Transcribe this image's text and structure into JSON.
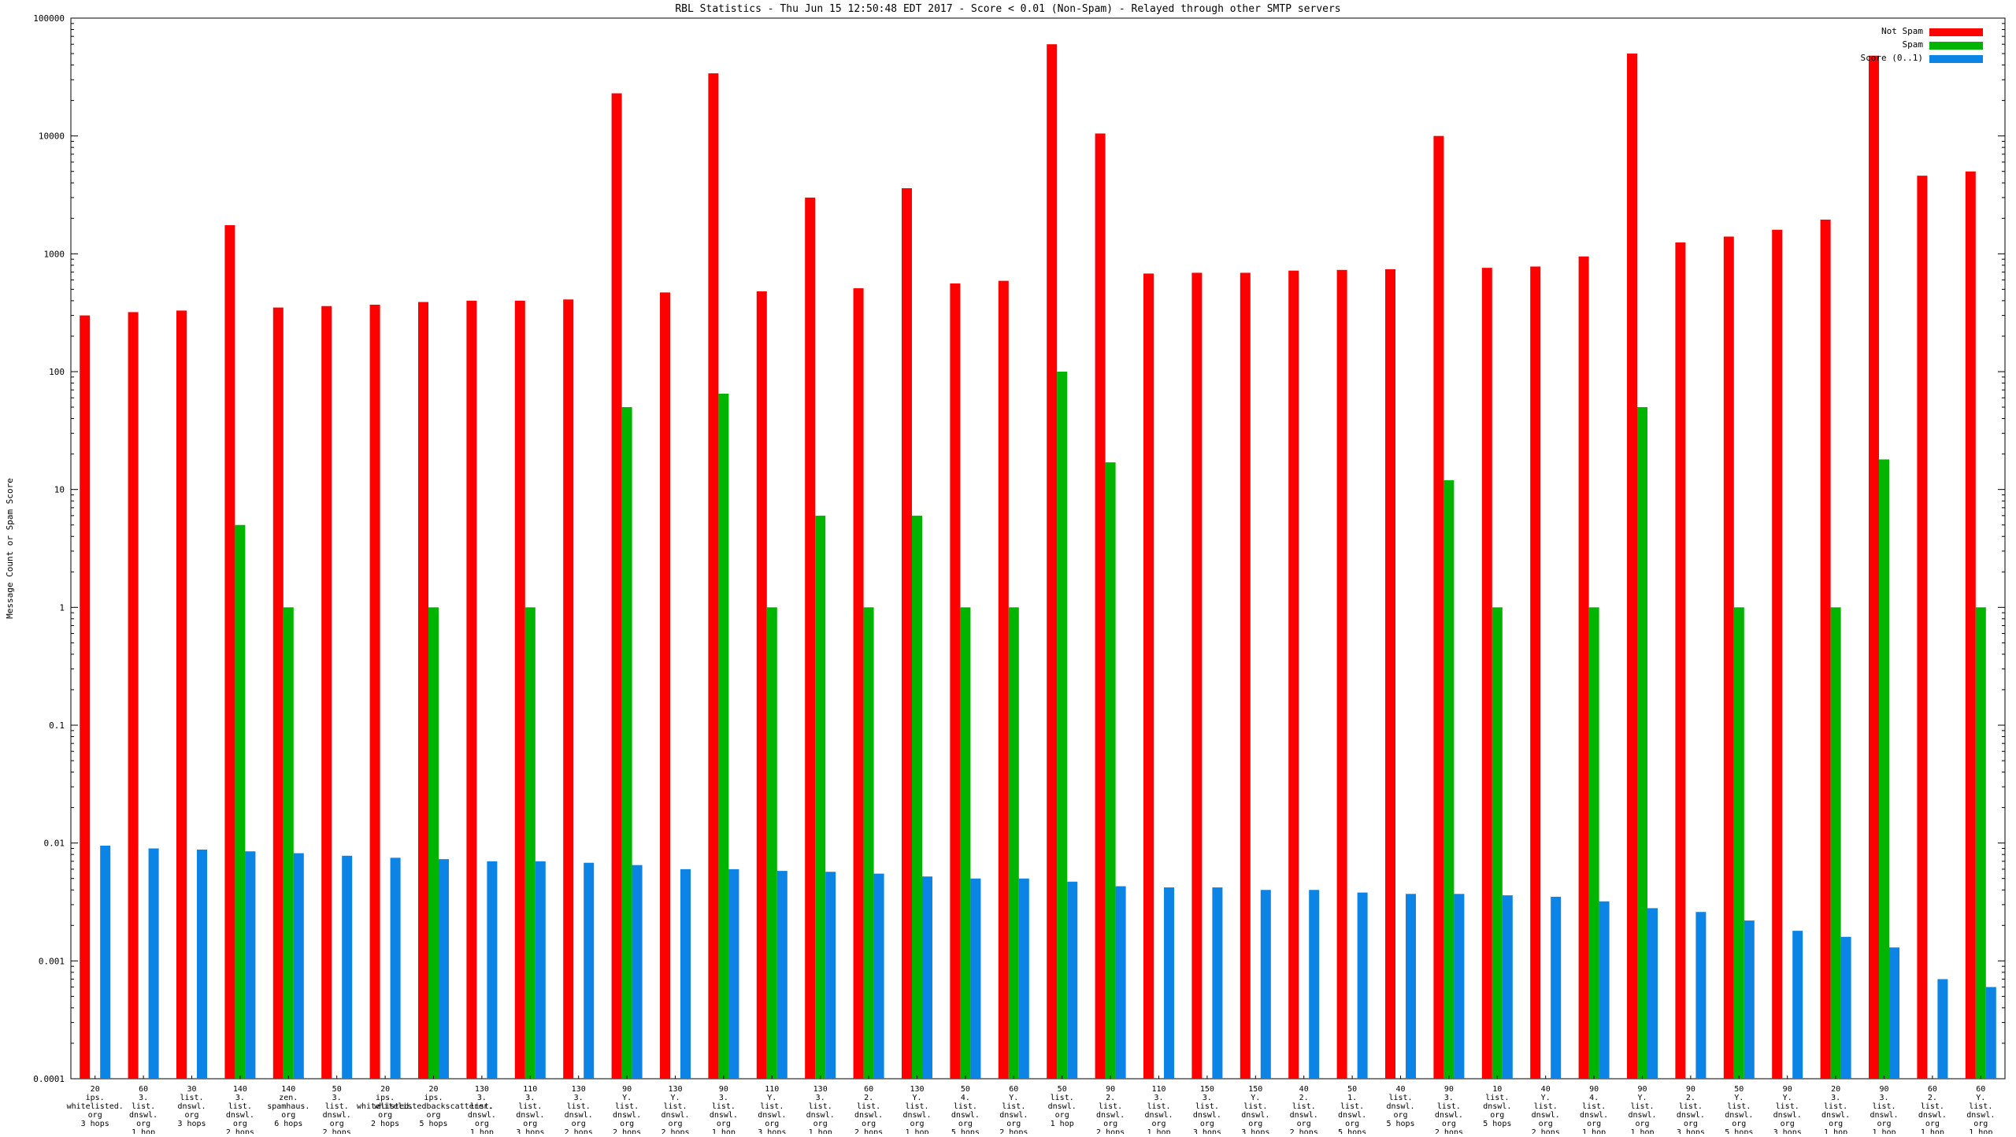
{
  "chart_data": {
    "type": "bar",
    "scale": "log",
    "title": "RBL Statistics - Thu Jun 15 12:50:48 EDT 2017 - Score < 0.01 (Non-Spam) - Relayed through other SMTP servers",
    "ylabel": "Message Count or Spam Score",
    "ylim": [
      0.0001,
      100000
    ],
    "yticks": [
      "100000",
      "10000",
      "1000",
      "100",
      "10",
      "1",
      "0.1",
      "0.01",
      "0.001",
      "0.0001"
    ],
    "grid": false,
    "legend_position": "top-right",
    "categories": [
      [
        "20",
        "ips.",
        "whitelisted.",
        "org",
        "3 hops"
      ],
      [
        "60",
        "3.",
        "list.",
        "dnswl.",
        "org",
        "1 hop"
      ],
      [
        "30",
        "list.",
        "dnswl.",
        "org",
        "3 hops"
      ],
      [
        "140",
        "3.",
        "list.",
        "dnswl.",
        "org",
        "2 hops"
      ],
      [
        "140",
        "zen.",
        "spamhaus.",
        "org",
        "6 hops"
      ],
      [
        "50",
        "3.",
        "list.",
        "dnswl.",
        "org",
        "2 hops"
      ],
      [
        "20",
        "ips.",
        "whitelisted.",
        "org",
        "2 hops"
      ],
      [
        "20",
        "ips.",
        "whitelistedbackscatterer.",
        "org",
        "5 hops"
      ],
      [
        "130",
        "3.",
        "list.",
        "dnswl.",
        "org",
        "1 hop"
      ],
      [
        "110",
        "3.",
        "list.",
        "dnswl.",
        "org",
        "3 hops"
      ],
      [
        "130",
        "3.",
        "list.",
        "dnswl.",
        "org",
        "2 hops"
      ],
      [
        "90",
        "Y.",
        "list.",
        "dnswl.",
        "org",
        "2 hops"
      ],
      [
        "130",
        "Y.",
        "list.",
        "dnswl.",
        "org",
        "2 hops"
      ],
      [
        "90",
        "3.",
        "list.",
        "dnswl.",
        "org",
        "1 hop"
      ],
      [
        "110",
        "Y.",
        "list.",
        "dnswl.",
        "org",
        "3 hops"
      ],
      [
        "130",
        "3.",
        "list.",
        "dnswl.",
        "org",
        "1 hop"
      ],
      [
        "60",
        "2.",
        "list.",
        "dnswl.",
        "org",
        "2 hops"
      ],
      [
        "130",
        "Y.",
        "list.",
        "dnswl.",
        "org",
        "1 hop"
      ],
      [
        "50",
        "4.",
        "list.",
        "dnswl.",
        "org",
        "5 hops"
      ],
      [
        "60",
        "Y.",
        "list.",
        "dnswl.",
        "org",
        "2 hops"
      ],
      [
        "50",
        "list.",
        "dnswl.",
        "org",
        "1 hop"
      ],
      [
        "90",
        "2.",
        "list.",
        "dnswl.",
        "org",
        "2 hops"
      ],
      [
        "110",
        "3.",
        "list.",
        "dnswl.",
        "org",
        "1 hop"
      ],
      [
        "150",
        "3.",
        "list.",
        "dnswl.",
        "org",
        "3 hops"
      ],
      [
        "150",
        "Y.",
        "list.",
        "dnswl.",
        "org",
        "3 hops"
      ],
      [
        "40",
        "2.",
        "list.",
        "dnswl.",
        "org",
        "2 hops"
      ],
      [
        "50",
        "1.",
        "list.",
        "dnswl.",
        "org",
        "5 hops"
      ],
      [
        "40",
        "list.",
        "dnswl.",
        "org",
        "5 hops"
      ],
      [
        "90",
        "3.",
        "list.",
        "dnswl.",
        "org",
        "2 hops"
      ],
      [
        "10",
        "list.",
        "dnswl.",
        "org",
        "5 hops"
      ],
      [
        "40",
        "Y.",
        "list.",
        "dnswl.",
        "org",
        "2 hops"
      ],
      [
        "90",
        "4.",
        "list.",
        "dnswl.",
        "org",
        "1 hop"
      ],
      [
        "90",
        "Y.",
        "list.",
        "dnswl.",
        "org",
        "1 hop"
      ],
      [
        "90",
        "2.",
        "list.",
        "dnswl.",
        "org",
        "3 hops"
      ],
      [
        "50",
        "Y.",
        "list.",
        "dnswl.",
        "org",
        "5 hops"
      ],
      [
        "90",
        "Y.",
        "list.",
        "dnswl.",
        "org",
        "3 hops"
      ],
      [
        "20",
        "3.",
        "list.",
        "dnswl.",
        "org",
        "1 hop"
      ],
      [
        "90",
        "3.",
        "list.",
        "dnswl.",
        "org",
        "1 hop"
      ],
      [
        "60",
        "2.",
        "list.",
        "dnswl.",
        "org",
        "1 hop"
      ],
      [
        "60",
        "Y.",
        "list.",
        "dnswl.",
        "org",
        "1 hop"
      ]
    ],
    "series": [
      {
        "name": "Not Spam",
        "color": "#ff0000",
        "values": [
          300,
          320,
          330,
          1750,
          350,
          360,
          370,
          390,
          400,
          400,
          410,
          23000,
          470,
          34000,
          480,
          3000,
          510,
          3600,
          560,
          590,
          60000,
          10500,
          680,
          690,
          690,
          720,
          730,
          740,
          10000,
          760,
          780,
          950,
          50000,
          1250,
          1400,
          1600,
          1950,
          48000,
          4600,
          5000
        ]
      },
      {
        "name": "Spam",
        "color": "#00b400",
        "values": [
          0,
          0,
          0,
          5,
          1,
          0,
          0,
          1,
          0,
          1,
          0,
          50,
          0,
          65,
          1,
          6,
          1,
          6,
          1,
          1,
          100,
          17,
          0,
          0,
          0,
          0,
          0,
          0,
          12,
          1,
          0,
          1,
          50,
          0,
          1,
          0,
          1,
          18,
          0,
          1
        ]
      },
      {
        "name": "Score (0..1)",
        "color": "#0b84e6",
        "values": [
          0.0095,
          0.009,
          0.0088,
          0.0085,
          0.0082,
          0.0078,
          0.0075,
          0.0073,
          0.007,
          0.007,
          0.0068,
          0.0065,
          0.006,
          0.006,
          0.0058,
          0.0057,
          0.0055,
          0.0052,
          0.005,
          0.005,
          0.0047,
          0.0043,
          0.0042,
          0.0042,
          0.004,
          0.004,
          0.0038,
          0.0037,
          0.0037,
          0.0036,
          0.0035,
          0.0032,
          0.0028,
          0.0026,
          0.0022,
          0.0018,
          0.0016,
          0.0013,
          0.0007,
          0.0006
        ]
      }
    ]
  }
}
